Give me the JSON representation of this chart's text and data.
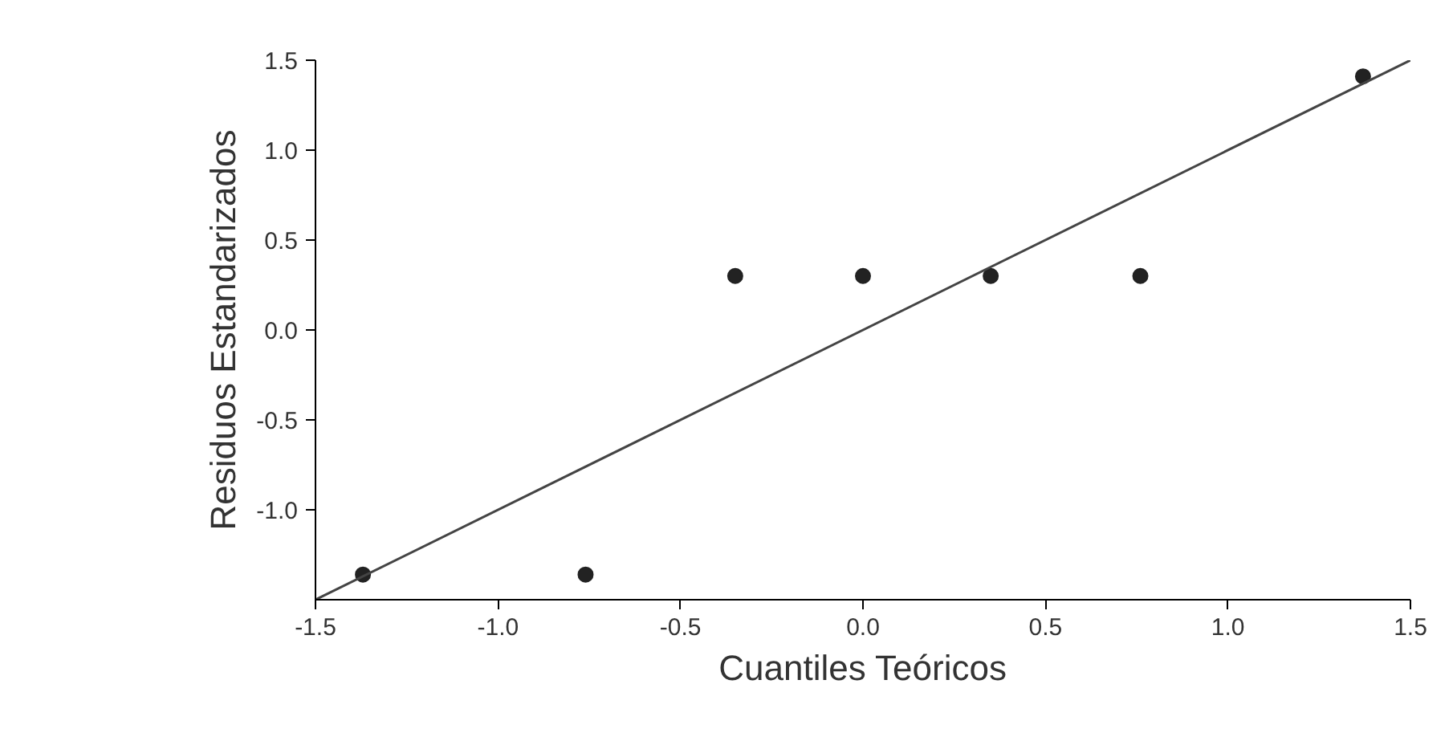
{
  "chart_data": {
    "type": "scatter",
    "xlabel": "Cuantiles Teóricos",
    "ylabel": "Residuos Estandarizados",
    "xlim": [
      -1.5,
      1.5
    ],
    "ylim": [
      -1.5,
      1.5
    ],
    "xticks": [
      {
        "value": -1.5,
        "label": "-1.5"
      },
      {
        "value": -1,
        "label": "-1.0"
      },
      {
        "value": -0.5,
        "label": "-0.5"
      },
      {
        "value": 0,
        "label": "0.0"
      },
      {
        "value": 0.5,
        "label": "0.5"
      },
      {
        "value": 1,
        "label": "1.0"
      },
      {
        "value": 1.5,
        "label": "1.5"
      }
    ],
    "yticks": [
      {
        "value": -1,
        "label": "-1.0"
      },
      {
        "value": -0.5,
        "label": "-0.5"
      },
      {
        "value": 0,
        "label": "0.0"
      },
      {
        "value": 0.5,
        "label": "0.5"
      },
      {
        "value": 1,
        "label": "1.0"
      },
      {
        "value": 1.5,
        "label": "1.5"
      }
    ],
    "series": [
      {
        "marker": "circle",
        "color": "#222222",
        "x": [
          -1.37,
          -0.76,
          -0.35,
          0,
          0.35,
          0.76,
          1.37
        ],
        "values": [
          -1.36,
          -1.36,
          0.3,
          0.3,
          0.3,
          0.3,
          1.41
        ]
      },
      {
        "type": "line",
        "marker": "none",
        "color": "#444444",
        "x": [
          -1.5,
          1.5
        ],
        "values": [
          -1.5,
          1.5
        ]
      }
    ],
    "grid": false
  }
}
